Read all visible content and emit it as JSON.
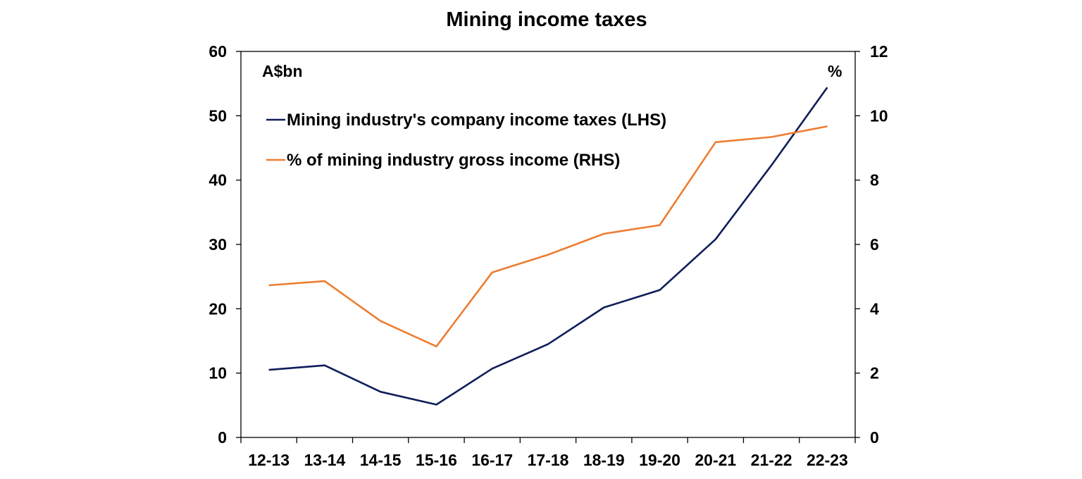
{
  "chart_data": {
    "type": "line",
    "title": "Mining income taxes",
    "left_axis_unit": "A$bn",
    "right_axis_unit": "%",
    "categories": [
      "12-13",
      "13-14",
      "14-15",
      "15-16",
      "16-17",
      "17-18",
      "18-19",
      "19-20",
      "20-21",
      "21-22",
      "22-23"
    ],
    "ylim_left": [
      0,
      60
    ],
    "ylim_right": [
      0,
      12
    ],
    "yticks_left": [
      "0",
      "10",
      "20",
      "30",
      "40",
      "50",
      "60"
    ],
    "yticks_right": [
      "0",
      "2",
      "4",
      "6",
      "8",
      "10",
      "12"
    ],
    "grid": false,
    "legend_position": "top-left",
    "series": [
      {
        "name": "Mining industry's company income taxes (LHS)",
        "axis": "left",
        "color": "#0f1e5a",
        "values": [
          10.5,
          11.2,
          7.1,
          5.1,
          10.7,
          14.5,
          20.2,
          22.9,
          30.8,
          42.3,
          54.4
        ]
      },
      {
        "name": "% of mining industry gross income (RHS)",
        "axis": "right",
        "color": "#ed7d31",
        "values": [
          4.73,
          4.86,
          3.62,
          2.83,
          5.13,
          5.68,
          6.33,
          6.6,
          9.18,
          9.34,
          9.67
        ]
      }
    ]
  }
}
